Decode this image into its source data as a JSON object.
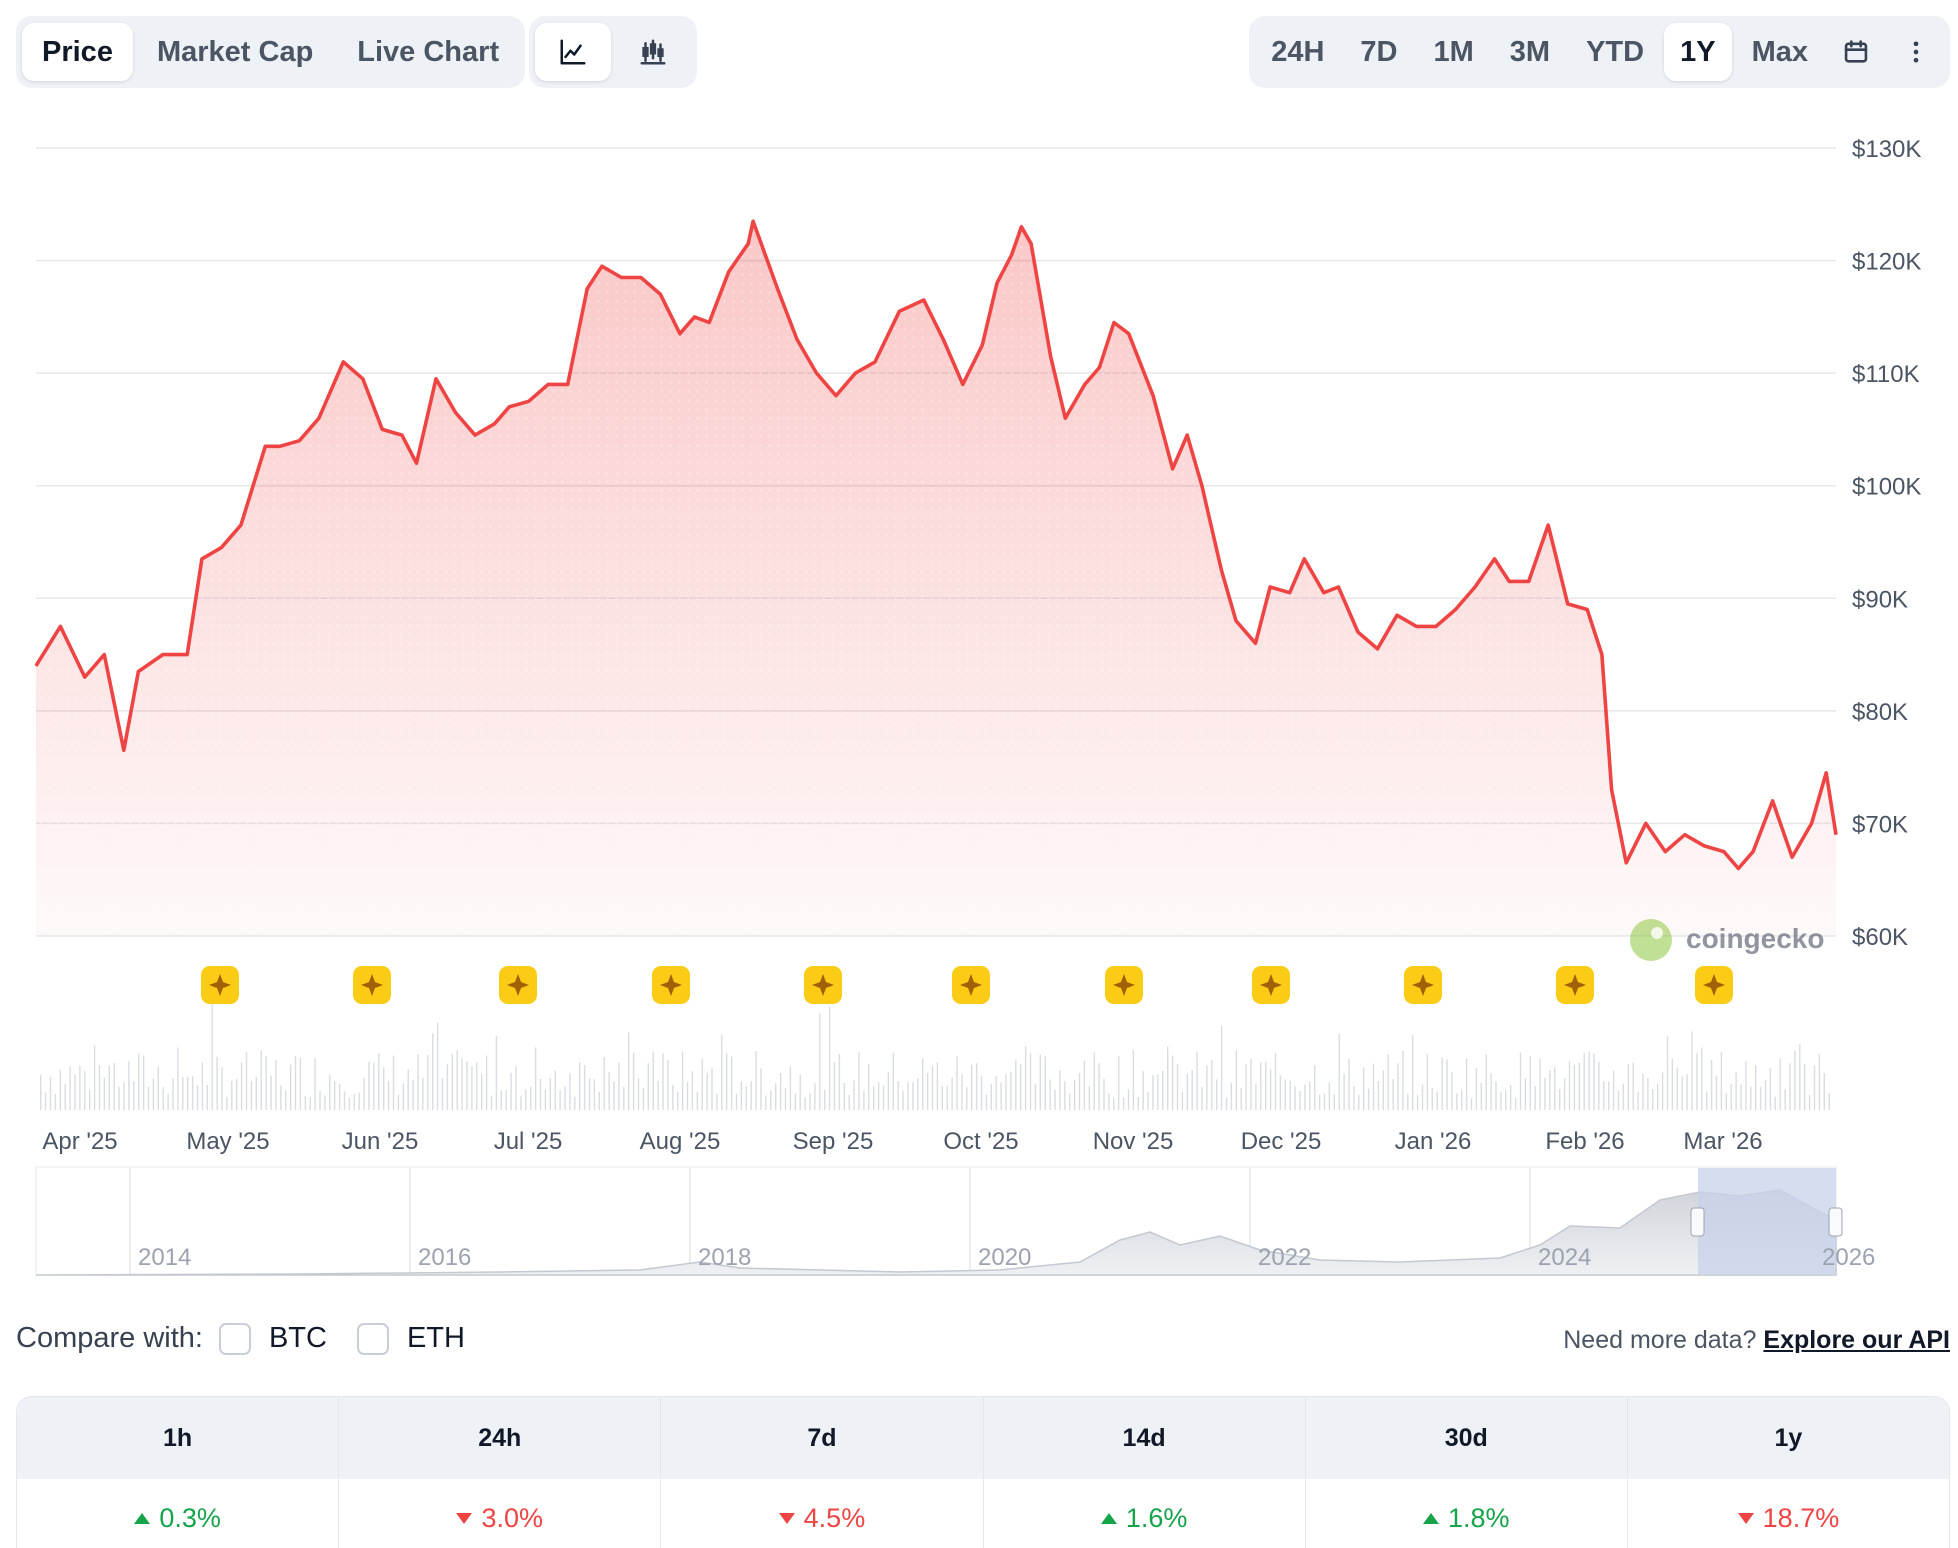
{
  "toolbar": {
    "view_tabs": [
      "Price",
      "Market Cap",
      "Live Chart"
    ],
    "active_view": "Price",
    "chart_type_icons": [
      "line-chart-icon",
      "candlestick-chart-icon"
    ],
    "ranges": [
      "24H",
      "7D",
      "1M",
      "3M",
      "YTD",
      "1Y",
      "Max"
    ],
    "active_range": "1Y",
    "extra_icons": [
      "calendar-icon",
      "more-vertical-icon"
    ]
  },
  "watermark": "coingecko",
  "chart_data": {
    "type": "area",
    "title": "",
    "xlabel": "",
    "ylabel": "",
    "ylim": [
      60000,
      130000
    ],
    "y_tick_labels": [
      "$130K",
      "$120K",
      "$110K",
      "$100K",
      "$90K",
      "$80K",
      "$70K",
      "$60K"
    ],
    "x_tick_labels": [
      "Apr '25",
      "May '25",
      "Jun '25",
      "Jul '25",
      "Aug '25",
      "Sep '25",
      "Oct '25",
      "Nov '25",
      "Dec '25",
      "Jan '26",
      "Feb '26",
      "Mar '26"
    ],
    "grid": true,
    "line_color": "#ef4444",
    "series": [
      {
        "x": [
          "2025-03-20",
          "2025-03-25",
          "2025-03-30",
          "2025-04-03",
          "2025-04-07",
          "2025-04-10",
          "2025-04-15",
          "2025-04-20",
          "2025-04-23",
          "2025-04-27",
          "2025-05-01",
          "2025-05-06",
          "2025-05-09",
          "2025-05-13",
          "2025-05-17",
          "2025-05-22",
          "2025-05-26",
          "2025-05-30",
          "2025-06-03",
          "2025-06-06",
          "2025-06-10",
          "2025-06-14",
          "2025-06-18",
          "2025-06-22",
          "2025-06-25",
          "2025-06-29",
          "2025-07-03",
          "2025-07-07",
          "2025-07-11",
          "2025-07-14",
          "2025-07-18",
          "2025-07-22",
          "2025-07-26",
          "2025-07-30",
          "2025-08-02",
          "2025-08-05",
          "2025-08-09",
          "2025-08-13",
          "2025-08-14",
          "2025-08-19",
          "2025-08-23",
          "2025-08-27",
          "2025-08-31",
          "2025-09-04",
          "2025-09-08",
          "2025-09-13",
          "2025-09-18",
          "2025-09-22",
          "2025-09-26",
          "2025-09-30",
          "2025-10-03",
          "2025-10-06",
          "2025-10-08",
          "2025-10-10",
          "2025-10-14",
          "2025-10-17",
          "2025-10-21",
          "2025-10-24",
          "2025-10-27",
          "2025-10-30",
          "2025-11-04",
          "2025-11-08",
          "2025-11-11",
          "2025-11-14",
          "2025-11-18",
          "2025-11-21",
          "2025-11-25",
          "2025-11-28",
          "2025-12-02",
          "2025-12-05",
          "2025-12-09",
          "2025-12-12",
          "2025-12-16",
          "2025-12-20",
          "2025-12-24",
          "2025-12-28",
          "2026-01-01",
          "2026-01-05",
          "2026-01-09",
          "2026-01-13",
          "2026-01-16",
          "2026-01-20",
          "2026-01-24",
          "2026-01-28",
          "2026-02-01",
          "2026-02-04",
          "2026-02-06",
          "2026-02-09",
          "2026-02-13",
          "2026-02-17",
          "2026-02-21",
          "2026-02-25",
          "2026-03-01",
          "2026-03-04",
          "2026-03-07",
          "2026-03-11",
          "2026-03-15",
          "2026-03-19",
          "2026-03-22",
          "2026-03-24"
        ],
        "values": [
          84000,
          87500,
          83000,
          85000,
          76500,
          83500,
          85000,
          85000,
          93500,
          94500,
          96500,
          103500,
          103500,
          104000,
          106000,
          111000,
          109500,
          105000,
          104500,
          102000,
          109500,
          106500,
          104500,
          105500,
          107000,
          107500,
          109000,
          109000,
          117500,
          119500,
          118500,
          118500,
          117000,
          113500,
          115000,
          114500,
          119000,
          121500,
          123500,
          117500,
          113000,
          110000,
          108000,
          110000,
          111000,
          115500,
          116500,
          113000,
          109000,
          112500,
          118000,
          120500,
          123000,
          121500,
          111500,
          106000,
          109000,
          110500,
          114500,
          113500,
          108000,
          101500,
          104500,
          100000,
          92500,
          88000,
          86000,
          91000,
          90500,
          93500,
          90500,
          91000,
          87000,
          85500,
          88500,
          87500,
          87500,
          89000,
          91000,
          93500,
          91500,
          91500,
          96500,
          89500,
          89000,
          85000,
          73000,
          66500,
          70000,
          67500,
          69000,
          68000,
          67500,
          66000,
          67500,
          72000,
          67000,
          70000,
          74500,
          69000
        ],
        "note": "Line trace through visible price points."
      }
    ],
    "events_markers_count": 11,
    "volume": {
      "type": "bar",
      "description": "Daily trading volume histogram below the price line."
    },
    "navigator": {
      "x_tick_labels": [
        "2014",
        "2016",
        "2018",
        "2020",
        "2022",
        "2024",
        "2026"
      ],
      "selected_range": "1Y"
    }
  },
  "compare": {
    "label": "Compare with:",
    "options": [
      "BTC",
      "ETH"
    ]
  },
  "api": {
    "prompt": "Need more data?",
    "link_text": "Explore our API"
  },
  "performance": {
    "periods": [
      "1h",
      "24h",
      "7d",
      "14d",
      "30d",
      "1y"
    ],
    "changes": [
      {
        "text": "0.3%",
        "direction": "up"
      },
      {
        "text": "3.0%",
        "direction": "down"
      },
      {
        "text": "4.5%",
        "direction": "down"
      },
      {
        "text": "1.6%",
        "direction": "up"
      },
      {
        "text": "1.8%",
        "direction": "up"
      },
      {
        "text": "18.7%",
        "direction": "down"
      }
    ],
    "colors": {
      "up": "#16a34a",
      "down": "#ef4444"
    }
  }
}
